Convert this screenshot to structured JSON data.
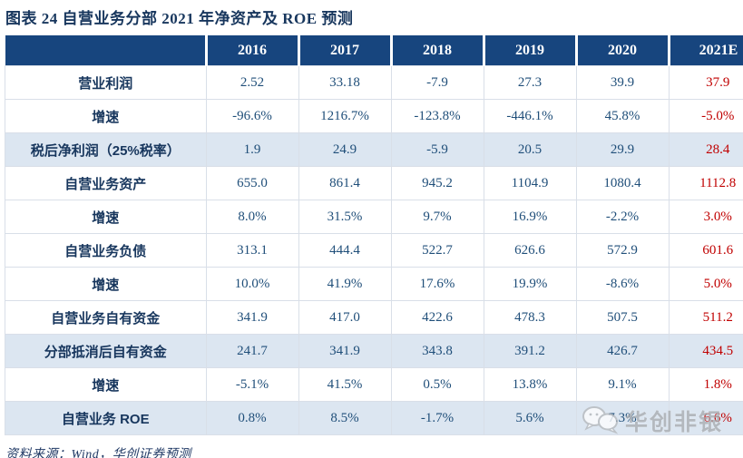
{
  "title": "图表 24  自营业务分部 2021 年净资产及 ROE 预测",
  "source": "资料来源：Wind，华创证券预测",
  "watermark": {
    "label": "华创非银",
    "icon": "chat-bubbles-icon"
  },
  "colors": {
    "header_bg": "#17457E",
    "header_text": "#FFFFFF",
    "value_text": "#1F4E79",
    "forecast_text": "#C00000",
    "label_text": "#17365D",
    "highlight_row_bg": "#DCE6F1",
    "grid_line": "#D9DFE8",
    "watermark_gray": "#A6A9AD"
  },
  "table": {
    "columns": [
      "2016",
      "2017",
      "2018",
      "2019",
      "2020",
      "2021E"
    ],
    "forecast_column": "2021E",
    "rows": [
      {
        "label": "营业利润",
        "values": [
          "2.52",
          "33.18",
          "-7.9",
          "27.3",
          "39.9",
          "37.9"
        ],
        "highlight": false
      },
      {
        "label": "增速",
        "values": [
          "-96.6%",
          "1216.7%",
          "-123.8%",
          "-446.1%",
          "45.8%",
          "-5.0%"
        ],
        "highlight": false
      },
      {
        "label": "税后净利润（25%税率）",
        "values": [
          "1.9",
          "24.9",
          "-5.9",
          "20.5",
          "29.9",
          "28.4"
        ],
        "highlight": true
      },
      {
        "label": "自营业务资产",
        "values": [
          "655.0",
          "861.4",
          "945.2",
          "1104.9",
          "1080.4",
          "1112.8"
        ],
        "highlight": false
      },
      {
        "label": "增速",
        "values": [
          "8.0%",
          "31.5%",
          "9.7%",
          "16.9%",
          "-2.2%",
          "3.0%"
        ],
        "highlight": false
      },
      {
        "label": "自营业务负债",
        "values": [
          "313.1",
          "444.4",
          "522.7",
          "626.6",
          "572.9",
          "601.6"
        ],
        "highlight": false
      },
      {
        "label": "增速",
        "values": [
          "10.0%",
          "41.9%",
          "17.6%",
          "19.9%",
          "-8.6%",
          "5.0%"
        ],
        "highlight": false
      },
      {
        "label": "自营业务自有资金",
        "values": [
          "341.9",
          "417.0",
          "422.6",
          "478.3",
          "507.5",
          "511.2"
        ],
        "highlight": false
      },
      {
        "label": "分部抵消后自有资金",
        "values": [
          "241.7",
          "341.9",
          "343.8",
          "391.2",
          "426.7",
          "434.5"
        ],
        "highlight": true
      },
      {
        "label": "增速",
        "values": [
          "-5.1%",
          "41.5%",
          "0.5%",
          "13.8%",
          "9.1%",
          "1.8%"
        ],
        "highlight": false
      },
      {
        "label": "自营业务 ROE",
        "values": [
          "0.8%",
          "8.5%",
          "-1.7%",
          "5.6%",
          "7.3%",
          "6.6%"
        ],
        "highlight": true
      }
    ]
  }
}
